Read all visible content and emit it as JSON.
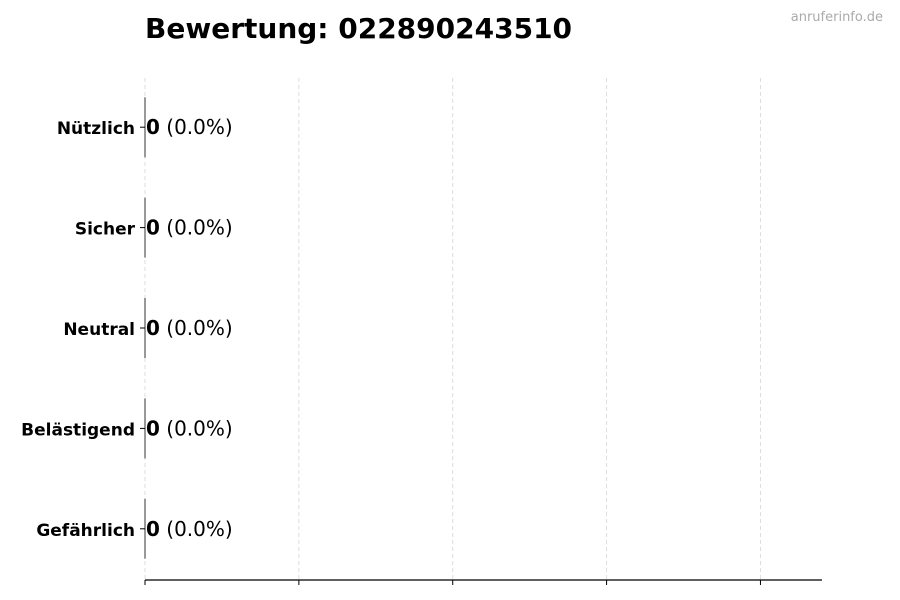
{
  "chart_data": {
    "type": "bar",
    "orientation": "horizontal",
    "title": "Bewertung: 022890243510",
    "categories": [
      "Nützlich",
      "Sicher",
      "Neutral",
      "Belästigend",
      "Gefährlich"
    ],
    "values": [
      0,
      0,
      0,
      0,
      0
    ],
    "percent_labels": [
      "(0.0%)",
      "(0.0%)",
      "(0.0%)",
      "(0.0%)",
      "(0.0%)"
    ],
    "xlim": [
      0,
      4.4
    ],
    "xticks": [
      0,
      1,
      2,
      3,
      4
    ],
    "xtick_labels_shown": false,
    "grid": "vertical dashed",
    "grid_color": "#dddddd",
    "bar_edge_color": "#333333"
  },
  "watermark": "anruferinfo.de"
}
